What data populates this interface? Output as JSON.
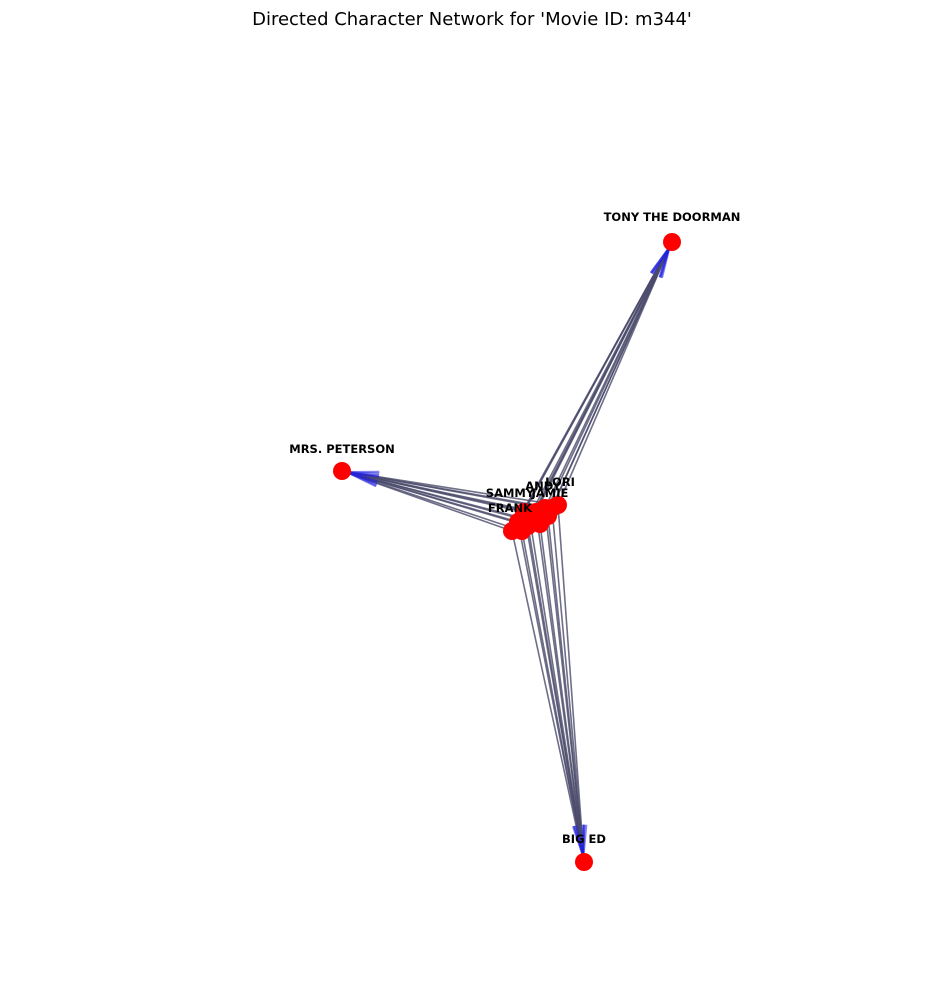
{
  "title": "Directed Character Network for 'Movie ID: m344'",
  "colors": {
    "node": "#ff0000",
    "edge": "#4a4a6a",
    "arrow": "#2020e0",
    "label": "#000000"
  },
  "nodes": [
    {
      "id": "TONY THE DOORMAN"
    },
    {
      "id": "MRS. PETERSON"
    },
    {
      "id": "BIG ED"
    },
    {
      "id": "LORI"
    },
    {
      "id": "ANDY"
    },
    {
      "id": "SAMMY"
    },
    {
      "id": "JAMIE"
    },
    {
      "id": "FRANK"
    }
  ]
}
